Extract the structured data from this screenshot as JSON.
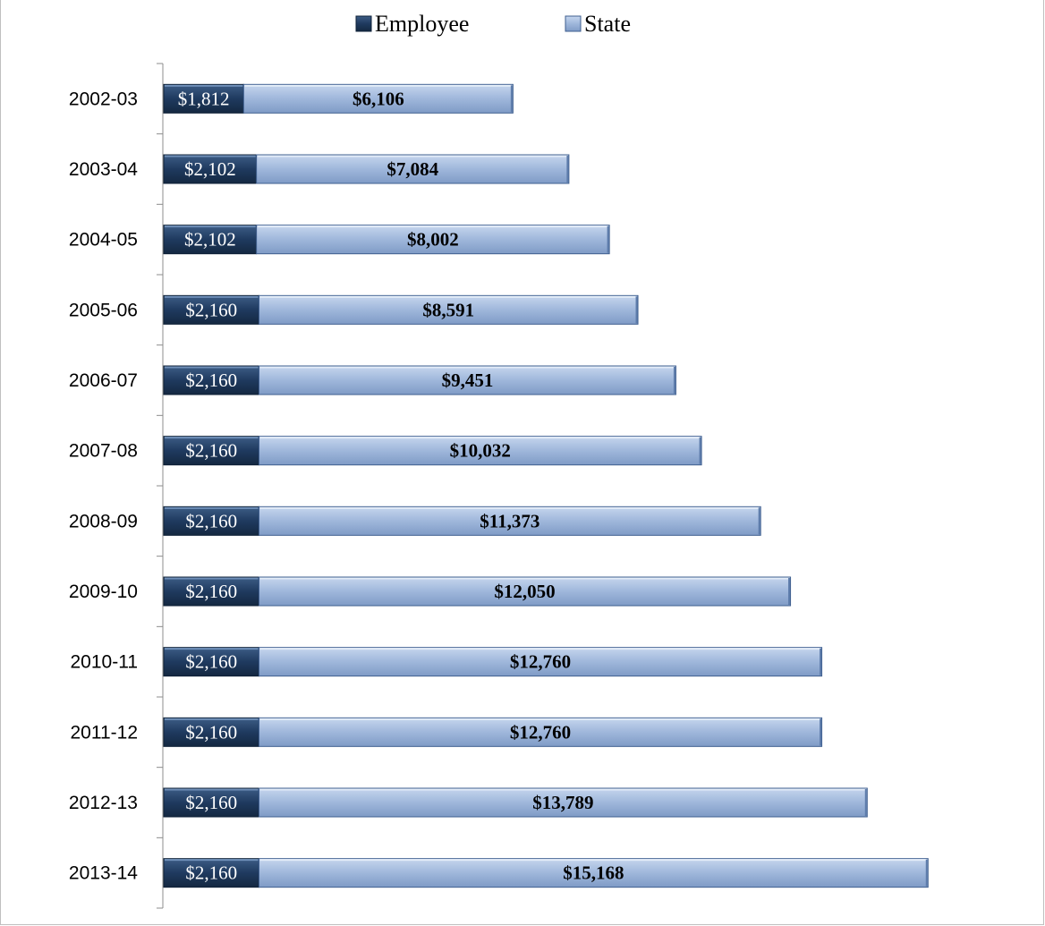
{
  "chart_data": {
    "type": "bar",
    "orientation": "horizontal",
    "stacked": true,
    "categories": [
      "2002-03",
      "2003-04",
      "2004-05",
      "2005-06",
      "2006-07",
      "2007-08",
      "2008-09",
      "2009-10",
      "2010-11",
      "2011-12",
      "2012-13",
      "2013-14"
    ],
    "series": [
      {
        "name": "Employee",
        "values": [
          1812,
          2102,
          2102,
          2160,
          2160,
          2160,
          2160,
          2160,
          2160,
          2160,
          2160,
          2160
        ],
        "labels": [
          "$1,812",
          "$2,102",
          "$2,102",
          "$2,160",
          "$2,160",
          "$2,160",
          "$2,160",
          "$2,160",
          "$2,160",
          "$2,160",
          "$2,160",
          "$2,160"
        ],
        "color": "#1f3a5f"
      },
      {
        "name": "State",
        "values": [
          6106,
          7084,
          8002,
          8591,
          9451,
          10032,
          11373,
          12050,
          12760,
          12760,
          13789,
          15168
        ],
        "labels": [
          "$6,106",
          "$7,084",
          "$8,002",
          "$8,591",
          "$9,451",
          "$10,032",
          "$11,373",
          "$12,050",
          "$12,760",
          "$12,760",
          "$13,789",
          "$15,168"
        ],
        "color": "#9fb7db"
      }
    ],
    "xlim": [
      0,
      18000
    ],
    "legend_position": "top",
    "grid": false,
    "title": "",
    "xlabel": "",
    "ylabel": ""
  }
}
